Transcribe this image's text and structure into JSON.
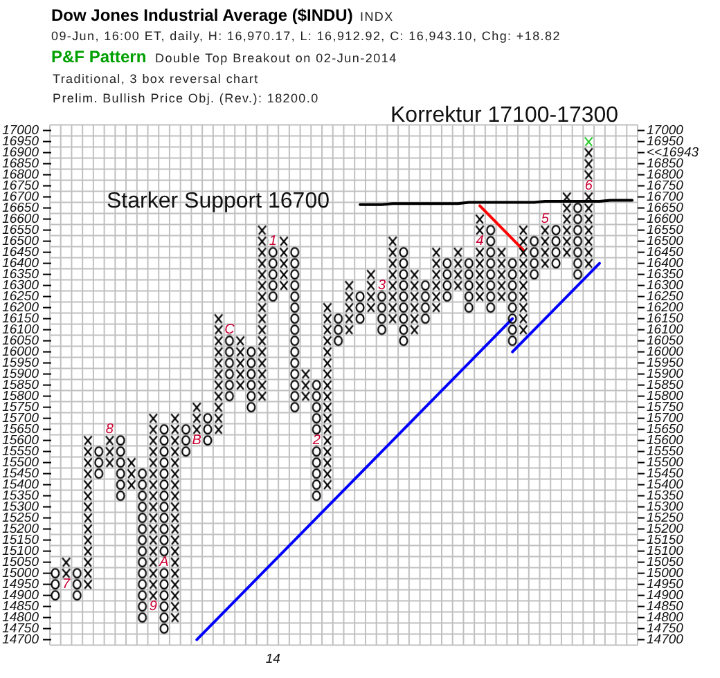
{
  "chart_data": {
    "type": "candlestick",
    "title": "Dow Jones Industrial Average ($INDU)",
    "subtitle": "09-Jun, 16:00 ET, daily, H: 16,970.17, L: 16,912.92, C: 16,943.10, Chg: +18.82",
    "annotations": [
      "INDX",
      "P&F Pattern",
      "Double Top Breakout on 02-Jun-2014",
      "Traditional, 3 box reversal chart",
      "Prelim. Bullish Price Obj. (Rev.): 18200.0",
      "Korrektur 17100-17300",
      "Starker Support 16700",
      {
        "text": "7",
        "y": 14950
      },
      {
        "text": "8",
        "y": 15650
      },
      {
        "text": "9",
        "y": 14850
      },
      {
        "text": "A",
        "y": 15050
      },
      {
        "text": "B",
        "y": 15600
      },
      {
        "text": "C",
        "y": 16100
      },
      {
        "text": "1",
        "y": 16500
      },
      {
        "text": "2",
        "y": 15600
      },
      {
        "text": "3",
        "y": 16300
      },
      {
        "text": "4",
        "y": 16500
      },
      {
        "text": "5",
        "y": 16600
      },
      {
        "text": "6",
        "y": 16750
      }
    ],
    "categories": [
      null,
      null,
      null,
      null,
      null,
      null,
      null,
      null,
      null,
      null,
      null,
      null,
      null,
      null,
      null,
      null,
      null,
      null,
      null,
      null,
      "14",
      null,
      null,
      null,
      null,
      null,
      null,
      null,
      null,
      null,
      null,
      null,
      null,
      null,
      null,
      null,
      null,
      null,
      null,
      null,
      null,
      null,
      null,
      null,
      null,
      null,
      null,
      null,
      null,
      null,
      null,
      null,
      null,
      null
    ],
    "ylim": [
      14675,
      17025
    ],
    "yticks": [
      14700,
      14750,
      14800,
      14850,
      14900,
      14950,
      15000,
      15050,
      15100,
      15150,
      15200,
      15250,
      15300,
      15350,
      15400,
      15450,
      15500,
      15550,
      15600,
      15650,
      15700,
      15750,
      15800,
      15850,
      15900,
      15950,
      16000,
      16050,
      16100,
      16150,
      16200,
      16250,
      16300,
      16350,
      16400,
      16450,
      16500,
      16550,
      16600,
      16650,
      16700,
      16750,
      16800,
      16850,
      16900,
      16950,
      17000
    ],
    "y2lim": [
      14675,
      17025
    ],
    "y2ticks": [
      14700,
      14750,
      14800,
      14850,
      14900,
      14950,
      15000,
      15050,
      15100,
      15150,
      15200,
      15250,
      15300,
      15350,
      15400,
      15450,
      15500,
      15550,
      15600,
      15650,
      15700,
      15750,
      15800,
      15850,
      15900,
      15950,
      16000,
      16050,
      16100,
      16150,
      16200,
      16250,
      16300,
      16350,
      16400,
      16450,
      16500,
      16550,
      16600,
      16650,
      16700,
      16750,
      16800,
      16850,
      {
        "value": 16900,
        "label": "<<16943"
      },
      16950,
      17000
    ],
    "grid": true,
    "color": "#000000",
    "ohlc": [
      [
        15025,
        15025,
        14875,
        14875
      ],
      [
        14925,
        15075,
        14925,
        15075
      ],
      [
        15025,
        15025,
        14875,
        14875
      ],
      [
        14925,
        15625,
        14925,
        15625
      ],
      [
        15575,
        15575,
        15425,
        15425
      ],
      [
        15475,
        15675,
        15475,
        15675
      ],
      [
        15625,
        15625,
        15325,
        15325
      ],
      [
        15375,
        15525,
        15375,
        15525
      ],
      [
        15475,
        15475,
        14775,
        14775
      ],
      [
        14825,
        15725,
        14825,
        15725
      ],
      [
        15675,
        15675,
        14725,
        14725
      ],
      [
        14775,
        15725,
        14775,
        15725
      ],
      [
        15675,
        15675,
        15525,
        15525
      ],
      [
        15575,
        15775,
        15575,
        15775
      ],
      [
        15725,
        15725,
        15575,
        15575
      ],
      [
        15625,
        16175,
        15625,
        16175
      ],
      [
        16125,
        16125,
        15775,
        15775
      ],
      [
        15825,
        16075,
        15825,
        16075
      ],
      [
        16025,
        16025,
        15725,
        15725
      ],
      [
        15775,
        16575,
        15775,
        16575
      ],
      [
        16525,
        16525,
        16225,
        16225
      ],
      [
        16275,
        16525,
        16275,
        16525
      ],
      [
        16475,
        16475,
        15725,
        15725
      ],
      [
        15775,
        15925,
        15775,
        15925
      ],
      [
        15875,
        15875,
        15325,
        15325
      ],
      [
        15375,
        16225,
        15375,
        16225
      ],
      [
        16175,
        16175,
        16025,
        16025
      ],
      [
        16075,
        16325,
        16075,
        16325
      ],
      [
        16275,
        16275,
        16125,
        16125
      ],
      [
        16175,
        16375,
        16175,
        16375
      ],
      [
        16325,
        16325,
        16075,
        16075
      ],
      [
        16125,
        16525,
        16125,
        16525
      ],
      [
        16475,
        16475,
        16025,
        16025
      ],
      [
        16075,
        16375,
        16075,
        16375
      ],
      [
        16325,
        16325,
        16125,
        16125
      ],
      [
        16175,
        16475,
        16175,
        16475
      ],
      [
        16425,
        16425,
        16225,
        16225
      ],
      [
        16275,
        16475,
        16275,
        16475
      ],
      [
        16425,
        16425,
        16175,
        16175
      ],
      [
        16225,
        16625,
        16225,
        16625
      ],
      [
        16575,
        16575,
        16175,
        16175
      ],
      [
        16225,
        16475,
        16225,
        16475
      ],
      [
        16425,
        16425,
        16025,
        16025
      ],
      [
        16075,
        16575,
        16075,
        16575
      ],
      [
        16525,
        16525,
        16325,
        16325
      ],
      [
        16375,
        16625,
        16375,
        16625
      ],
      [
        16575,
        16575,
        16375,
        16375
      ],
      [
        16425,
        16725,
        16425,
        16725
      ],
      [
        16675,
        16675,
        16325,
        16325
      ],
      [
        16375,
        16925,
        16375,
        16925
      ],
      null,
      null,
      null,
      null
    ],
    "series": [
      {
        "type": "scatter",
        "marker": "cross",
        "color": "#33cc33",
        "values": [
          null,
          null,
          null,
          null,
          null,
          null,
          null,
          null,
          null,
          null,
          null,
          null,
          null,
          null,
          null,
          null,
          null,
          null,
          null,
          null,
          null,
          null,
          null,
          null,
          null,
          null,
          null,
          null,
          null,
          null,
          null,
          null,
          null,
          null,
          null,
          null,
          null,
          null,
          null,
          null,
          null,
          null,
          null,
          null,
          null,
          null,
          null,
          null,
          null,
          16950,
          null,
          null,
          null,
          null
        ]
      },
      {
        "type": "line",
        "color": "#000000",
        "values": [
          null,
          null,
          null,
          null,
          null,
          null,
          null,
          null,
          null,
          null,
          null,
          null,
          null,
          null,
          null,
          null,
          null,
          null,
          null,
          null,
          null,
          null,
          null,
          null,
          null,
          null,
          null,
          null,
          16665,
          16665,
          16665,
          16670,
          16670,
          16670,
          16670,
          16670,
          16670,
          16670,
          16675,
          16675,
          16675,
          16675,
          16675,
          16675,
          16675,
          16680,
          16680,
          16680,
          16680,
          16680,
          16680,
          16685,
          16685,
          16685
        ]
      },
      {
        "type": "line",
        "color": "#ff0000",
        "values": [
          null,
          null,
          null,
          null,
          null,
          null,
          null,
          null,
          null,
          null,
          null,
          null,
          null,
          null,
          null,
          null,
          null,
          null,
          null,
          null,
          null,
          null,
          null,
          null,
          null,
          null,
          null,
          null,
          null,
          null,
          null,
          null,
          null,
          null,
          null,
          null,
          null,
          null,
          null,
          16660,
          16610,
          16560,
          16510,
          16460,
          null,
          null,
          null,
          null,
          null,
          null,
          null,
          null,
          null,
          null
        ]
      },
      {
        "type": "line",
        "color": "#0000ff",
        "values": [
          null,
          null,
          null,
          null,
          null,
          null,
          null,
          null,
          null,
          null,
          null,
          null,
          null,
          14700,
          14750,
          14800,
          14850,
          14900,
          14950,
          15000,
          15050,
          15100,
          15150,
          15200,
          15250,
          15300,
          15350,
          15400,
          15450,
          15500,
          15550,
          15600,
          15650,
          15700,
          15750,
          15800,
          15850,
          15900,
          15950,
          16000,
          16050,
          16100,
          16150,
          null,
          null,
          null,
          null,
          null,
          null,
          null,
          null,
          null,
          null,
          null
        ]
      },
      {
        "type": "line",
        "color": "#0000ff",
        "values": [
          null,
          null,
          null,
          null,
          null,
          null,
          null,
          null,
          null,
          null,
          null,
          null,
          null,
          null,
          null,
          null,
          null,
          null,
          null,
          null,
          null,
          null,
          null,
          null,
          null,
          null,
          null,
          null,
          null,
          null,
          null,
          null,
          null,
          null,
          null,
          null,
          null,
          null,
          null,
          null,
          null,
          null,
          16000,
          16050,
          16100,
          16150,
          16200,
          16250,
          16300,
          16350,
          16400,
          null,
          null,
          null
        ]
      }
    ]
  }
}
